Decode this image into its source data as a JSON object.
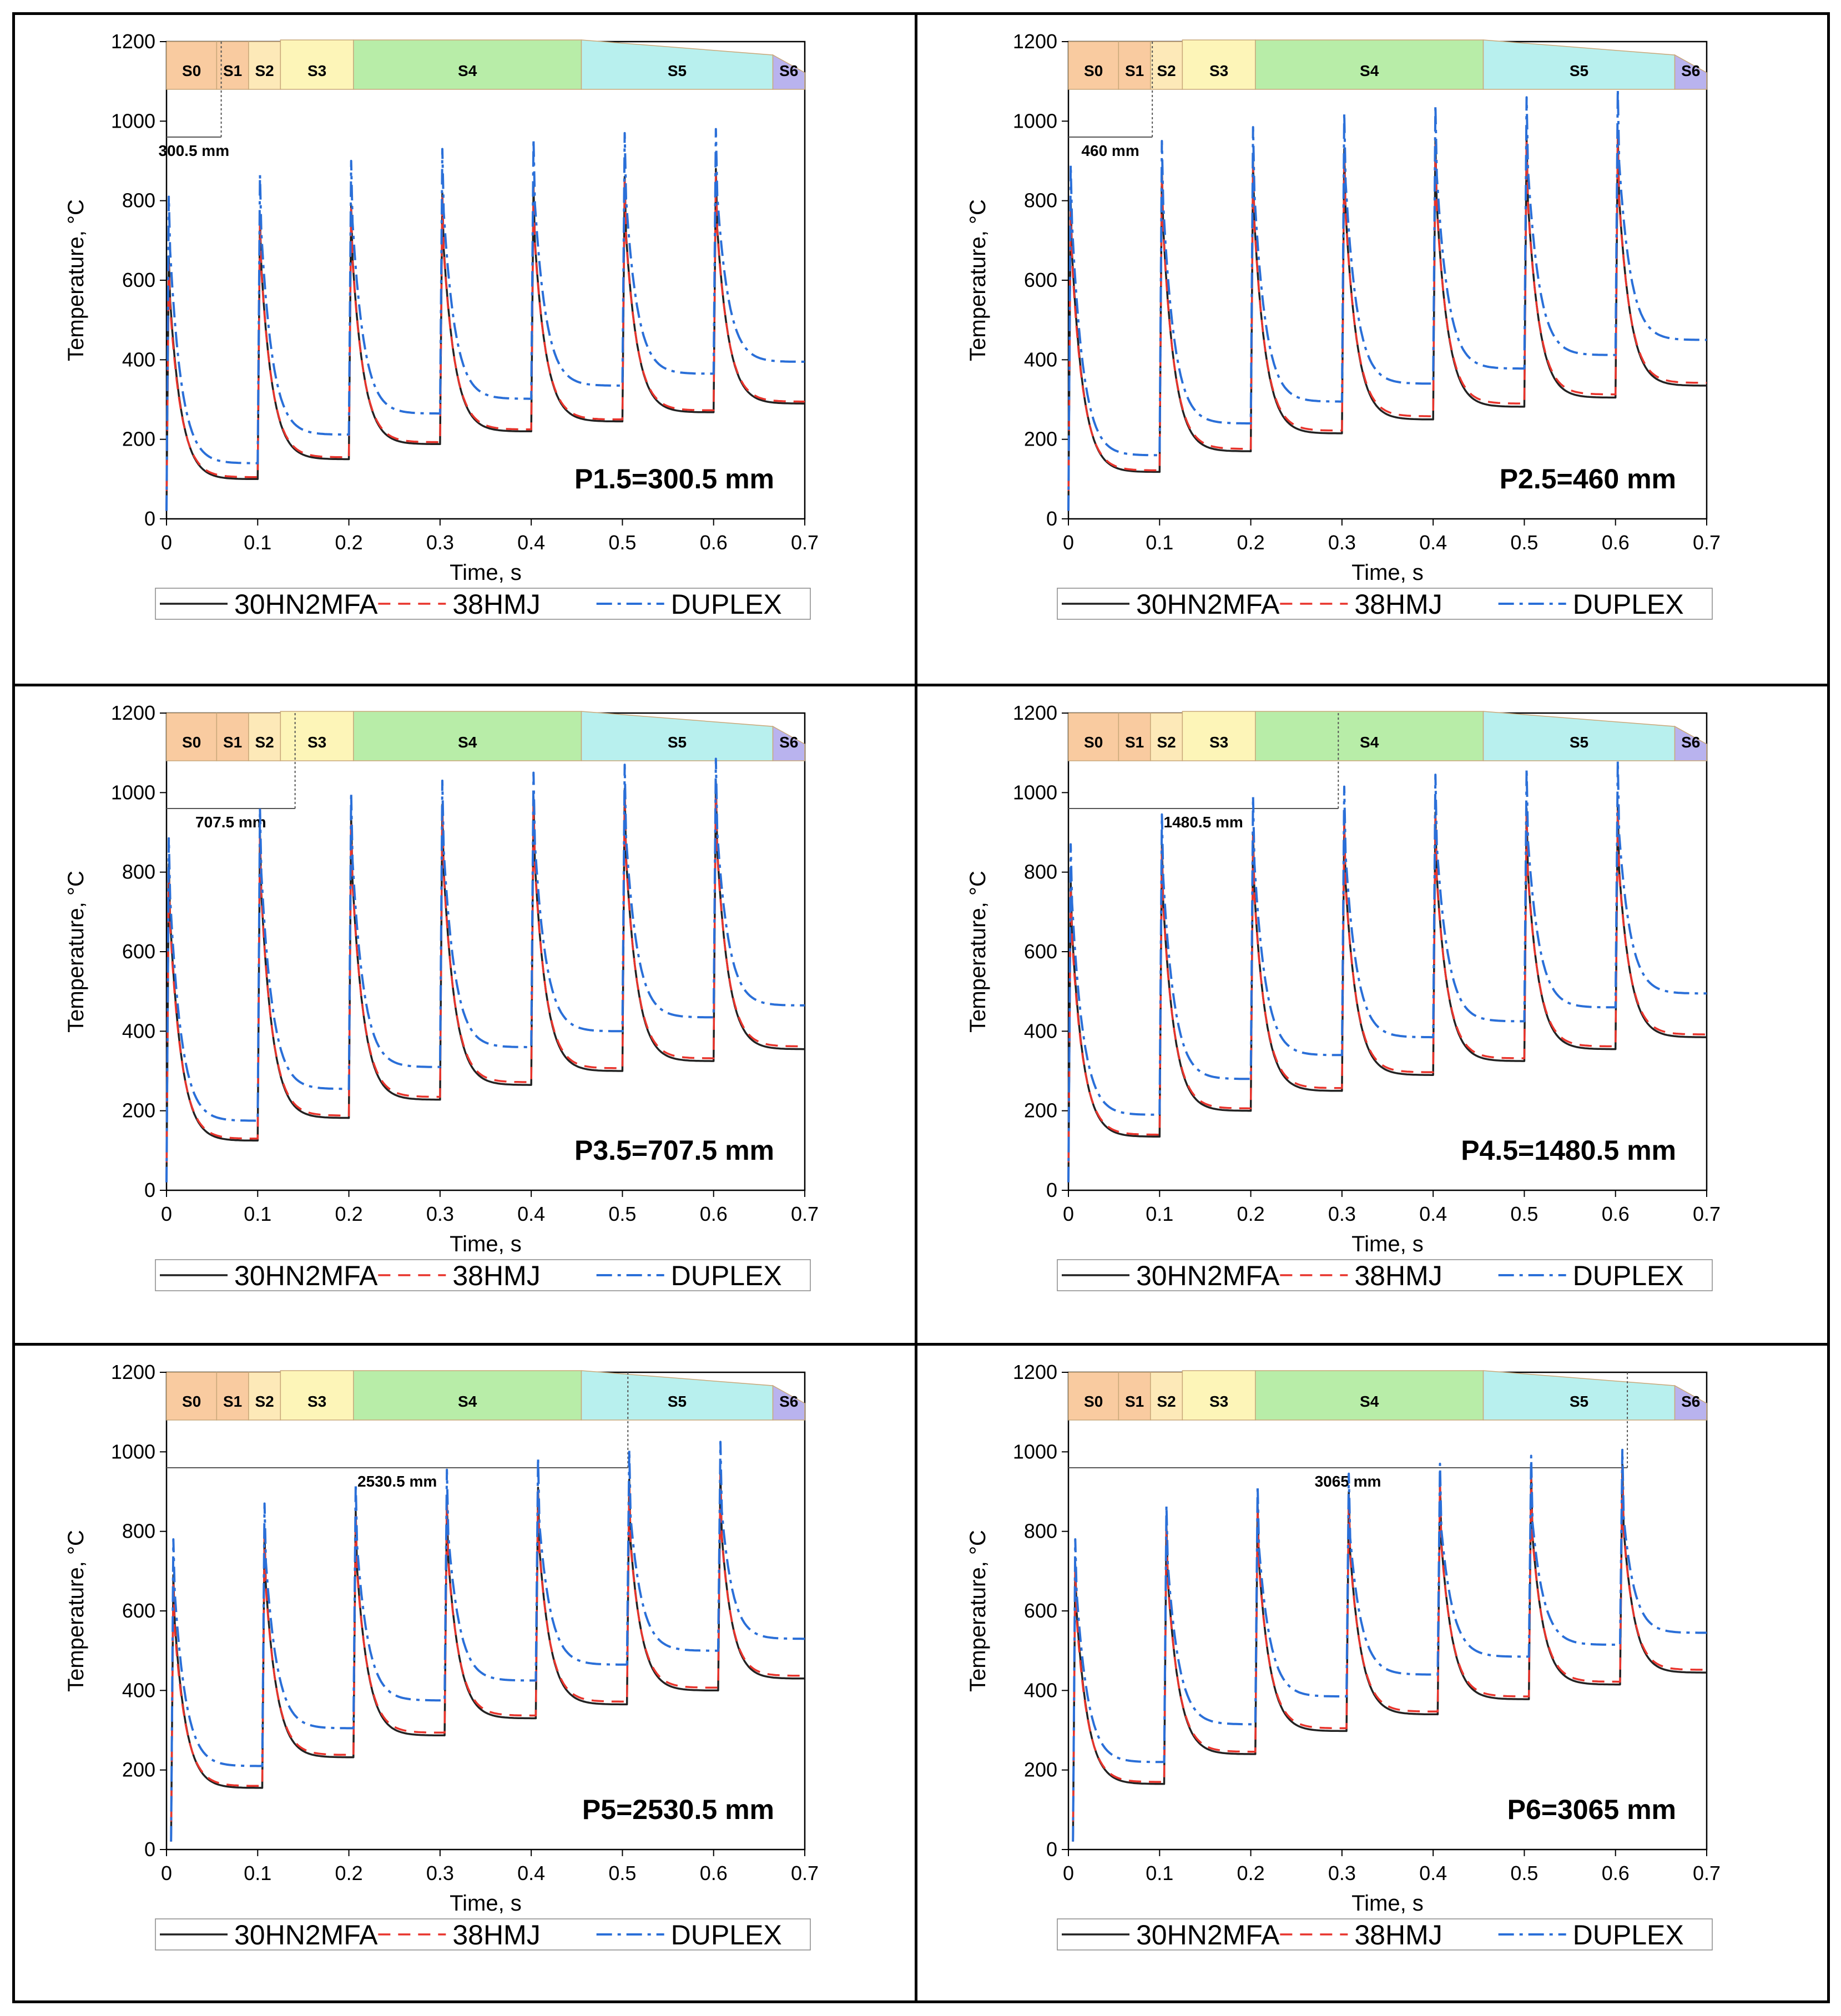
{
  "chart_data": [
    {
      "type": "line",
      "panel": "top-left",
      "title": "P1.5=300.5 mm",
      "xlabel": "Time, s",
      "ylabel": "Temperature, °C",
      "xlim": [
        0,
        0.7
      ],
      "ylim": [
        0,
        1200
      ],
      "xticks": [
        "0",
        "0.1",
        "0.2",
        "0.3",
        "0.4",
        "0.5",
        "0.6",
        "0.7"
      ],
      "yticks": [
        "0",
        "200",
        "400",
        "600",
        "800",
        "1000",
        "1200"
      ],
      "distance_label": "300.5 mm",
      "distance_end": 0.6,
      "legend": [
        "30HN2MFA",
        "38HMJ",
        "DUPLEX"
      ],
      "cycle_start": 0.0,
      "series": [
        {
          "name": "30HN2MFA",
          "peaks": [
            660,
            760,
            790,
            820,
            840,
            860,
            880
          ],
          "troughs": [
            100,
            150,
            188,
            220,
            245,
            268,
            290
          ]
        },
        {
          "name": "38HMJ",
          "peaks": [
            640,
            750,
            780,
            810,
            830,
            850,
            870
          ],
          "troughs": [
            105,
            155,
            193,
            225,
            250,
            273,
            295
          ]
        },
        {
          "name": "DUPLEX",
          "peaks": [
            810,
            865,
            900,
            930,
            955,
            970,
            980
          ],
          "troughs": [
            140,
            212,
            265,
            302,
            335,
            365,
            395
          ]
        }
      ]
    },
    {
      "type": "line",
      "panel": "top-right",
      "title": "P2.5=460 mm",
      "xlabel": "Time, s",
      "ylabel": "Temperature, °C",
      "xlim": [
        0,
        0.7
      ],
      "ylim": [
        0,
        1200
      ],
      "xticks": [
        "0",
        "0.1",
        "0.2",
        "0.3",
        "0.4",
        "0.5",
        "0.6",
        "0.7"
      ],
      "yticks": [
        "0",
        "200",
        "400",
        "600",
        "800",
        "1000",
        "1200"
      ],
      "distance_label": "460 mm",
      "distance_end": 0.92,
      "legend": [
        "30HN2MFA",
        "38HMJ",
        "DUPLEX"
      ],
      "cycle_start": 0.0,
      "series": [
        {
          "name": "30HN2MFA",
          "peaks": [
            800,
            880,
            900,
            930,
            950,
            960,
            970
          ],
          "troughs": [
            118,
            170,
            215,
            250,
            282,
            305,
            335
          ]
        },
        {
          "name": "38HMJ",
          "peaks": [
            780,
            870,
            890,
            920,
            940,
            950,
            960
          ],
          "troughs": [
            122,
            176,
            222,
            258,
            290,
            313,
            342
          ]
        },
        {
          "name": "DUPLEX",
          "peaks": [
            890,
            950,
            985,
            1020,
            1040,
            1060,
            1080
          ],
          "troughs": [
            160,
            240,
            295,
            340,
            378,
            412,
            450
          ]
        }
      ]
    },
    {
      "type": "line",
      "panel": "middle-left",
      "title": "P3.5=707.5 mm",
      "xlabel": "Time, s",
      "ylabel": "Temperature, °C",
      "xlim": [
        0,
        0.7
      ],
      "ylim": [
        0,
        1200
      ],
      "xticks": [
        "0",
        "0.1",
        "0.2",
        "0.3",
        "0.4",
        "0.5",
        "0.6",
        "0.7"
      ],
      "yticks": [
        "0",
        "200",
        "400",
        "600",
        "800",
        "1000",
        "1200"
      ],
      "distance_label": "707.5 mm",
      "distance_end": 1.41,
      "legend": [
        "30HN2MFA",
        "38HMJ",
        "DUPLEX"
      ],
      "cycle_start": 0.0,
      "series": [
        {
          "name": "30HN2MFA",
          "peaks": [
            820,
            900,
            940,
            970,
            990,
            1010,
            1030
          ],
          "troughs": [
            125,
            182,
            228,
            265,
            300,
            325,
            355
          ]
        },
        {
          "name": "38HMJ",
          "peaks": [
            800,
            890,
            930,
            960,
            980,
            1000,
            1020
          ],
          "troughs": [
            130,
            188,
            235,
            272,
            307,
            332,
            362
          ]
        },
        {
          "name": "DUPLEX",
          "peaks": [
            885,
            960,
            1000,
            1030,
            1050,
            1070,
            1085
          ],
          "troughs": [
            175,
            255,
            310,
            360,
            400,
            435,
            465
          ]
        }
      ]
    },
    {
      "type": "line",
      "panel": "middle-right",
      "title": "P4.5=1480.5 mm",
      "xlabel": "Time, s",
      "ylabel": "Temperature, °C",
      "xlim": [
        0,
        0.7
      ],
      "ylim": [
        0,
        1200
      ],
      "xticks": [
        "0",
        "0.1",
        "0.2",
        "0.3",
        "0.4",
        "0.5",
        "0.6",
        "0.7"
      ],
      "yticks": [
        "0",
        "200",
        "400",
        "600",
        "800",
        "1000",
        "1200"
      ],
      "distance_label": "1480.5 mm",
      "distance_end": 2.96,
      "legend": [
        "30HN2MFA",
        "38HMJ",
        "DUPLEX"
      ],
      "cycle_start": 0.0,
      "series": [
        {
          "name": "30HN2MFA",
          "peaks": [
            780,
            870,
            900,
            930,
            950,
            960,
            970
          ],
          "troughs": [
            135,
            200,
            250,
            290,
            325,
            355,
            385
          ]
        },
        {
          "name": "38HMJ",
          "peaks": [
            760,
            860,
            890,
            920,
            940,
            950,
            960
          ],
          "troughs": [
            140,
            206,
            257,
            297,
            332,
            362,
            392
          ]
        },
        {
          "name": "DUPLEX",
          "peaks": [
            870,
            945,
            990,
            1015,
            1045,
            1060,
            1080
          ],
          "troughs": [
            190,
            280,
            340,
            385,
            425,
            460,
            495
          ]
        }
      ]
    },
    {
      "type": "line",
      "panel": "bottom-left",
      "title": "P5=2530.5 mm",
      "xlabel": "Time, s",
      "ylabel": "Temperature, °C",
      "xlim": [
        0,
        0.7
      ],
      "ylim": [
        0,
        1200
      ],
      "xticks": [
        "0",
        "0.1",
        "0.2",
        "0.3",
        "0.4",
        "0.5",
        "0.6",
        "0.7"
      ],
      "yticks": [
        "0",
        "200",
        "400",
        "600",
        "800",
        "1000",
        "1200"
      ],
      "distance_label": "2530.5 mm",
      "distance_end": 5.06,
      "legend": [
        "30HN2MFA",
        "38HMJ",
        "DUPLEX"
      ],
      "cycle_start": 0.005,
      "series": [
        {
          "name": "30HN2MFA",
          "peaks": [
            690,
            800,
            850,
            880,
            910,
            930,
            950
          ],
          "troughs": [
            155,
            232,
            287,
            330,
            365,
            400,
            430
          ]
        },
        {
          "name": "38HMJ",
          "peaks": [
            670,
            790,
            840,
            870,
            900,
            920,
            940
          ],
          "troughs": [
            160,
            238,
            294,
            337,
            372,
            407,
            437
          ]
        },
        {
          "name": "DUPLEX",
          "peaks": [
            780,
            870,
            920,
            955,
            985,
            1005,
            1025
          ],
          "troughs": [
            210,
            305,
            375,
            425,
            465,
            500,
            530
          ]
        }
      ]
    },
    {
      "type": "line",
      "panel": "bottom-right",
      "title": "P6=3065 mm",
      "xlabel": "Time, s",
      "ylabel": "Temperature, °C",
      "xlim": [
        0,
        0.7
      ],
      "ylim": [
        0,
        1200
      ],
      "xticks": [
        "0",
        "0.1",
        "0.2",
        "0.3",
        "0.4",
        "0.5",
        "0.6",
        "0.7"
      ],
      "yticks": [
        "0",
        "200",
        "400",
        "600",
        "800",
        "1000",
        "1200"
      ],
      "distance_label": "3065 mm",
      "distance_end": 6.13,
      "legend": [
        "30HN2MFA",
        "38HMJ",
        "DUPLEX"
      ],
      "cycle_start": 0.005,
      "series": [
        {
          "name": "30HN2MFA",
          "peaks": [
            720,
            820,
            870,
            900,
            930,
            950,
            970
          ],
          "troughs": [
            165,
            240,
            298,
            340,
            378,
            415,
            445
          ]
        },
        {
          "name": "38HMJ",
          "peaks": [
            700,
            810,
            860,
            890,
            920,
            940,
            960
          ],
          "troughs": [
            170,
            246,
            305,
            347,
            385,
            422,
            452
          ]
        },
        {
          "name": "DUPLEX",
          "peaks": [
            780,
            865,
            915,
            945,
            970,
            990,
            1005
          ],
          "troughs": [
            220,
            315,
            385,
            440,
            485,
            515,
            545
          ]
        }
      ]
    }
  ],
  "stages": [
    {
      "label": "S0",
      "color": "#f9cba0",
      "start": 0.0,
      "end": 0.55,
      "top": 1.0,
      "bottom": 1.0
    },
    {
      "label": "S1",
      "color": "#f9cba0",
      "start": 0.55,
      "end": 0.9,
      "top": 1.0,
      "bottom": 1.0
    },
    {
      "label": "S2",
      "color": "#fde9b8",
      "start": 0.9,
      "end": 1.25,
      "top": 1.0,
      "bottom": 1.0
    },
    {
      "label": "S3",
      "color": "#fdf5b8",
      "start": 1.25,
      "end": 2.05,
      "top": 1.04,
      "bottom": 1.0
    },
    {
      "label": "S4",
      "color": "#b8eda8",
      "start": 2.05,
      "end": 4.55,
      "top": 1.04,
      "bottom": 1.0
    },
    {
      "label": "S5",
      "color": "#b8f0ee",
      "start": 4.55,
      "end": 6.65,
      "top": 0.72,
      "bottom": 1.0
    },
    {
      "label": "S6",
      "color": "#b9b3ee",
      "start": 6.65,
      "end": 7.0,
      "top": 0.35,
      "bottom": 1.0
    }
  ],
  "colors": {
    "30HN2MFA": "#222222",
    "38HMJ": "#e8342c",
    "DUPLEX": "#2a6fd8"
  }
}
